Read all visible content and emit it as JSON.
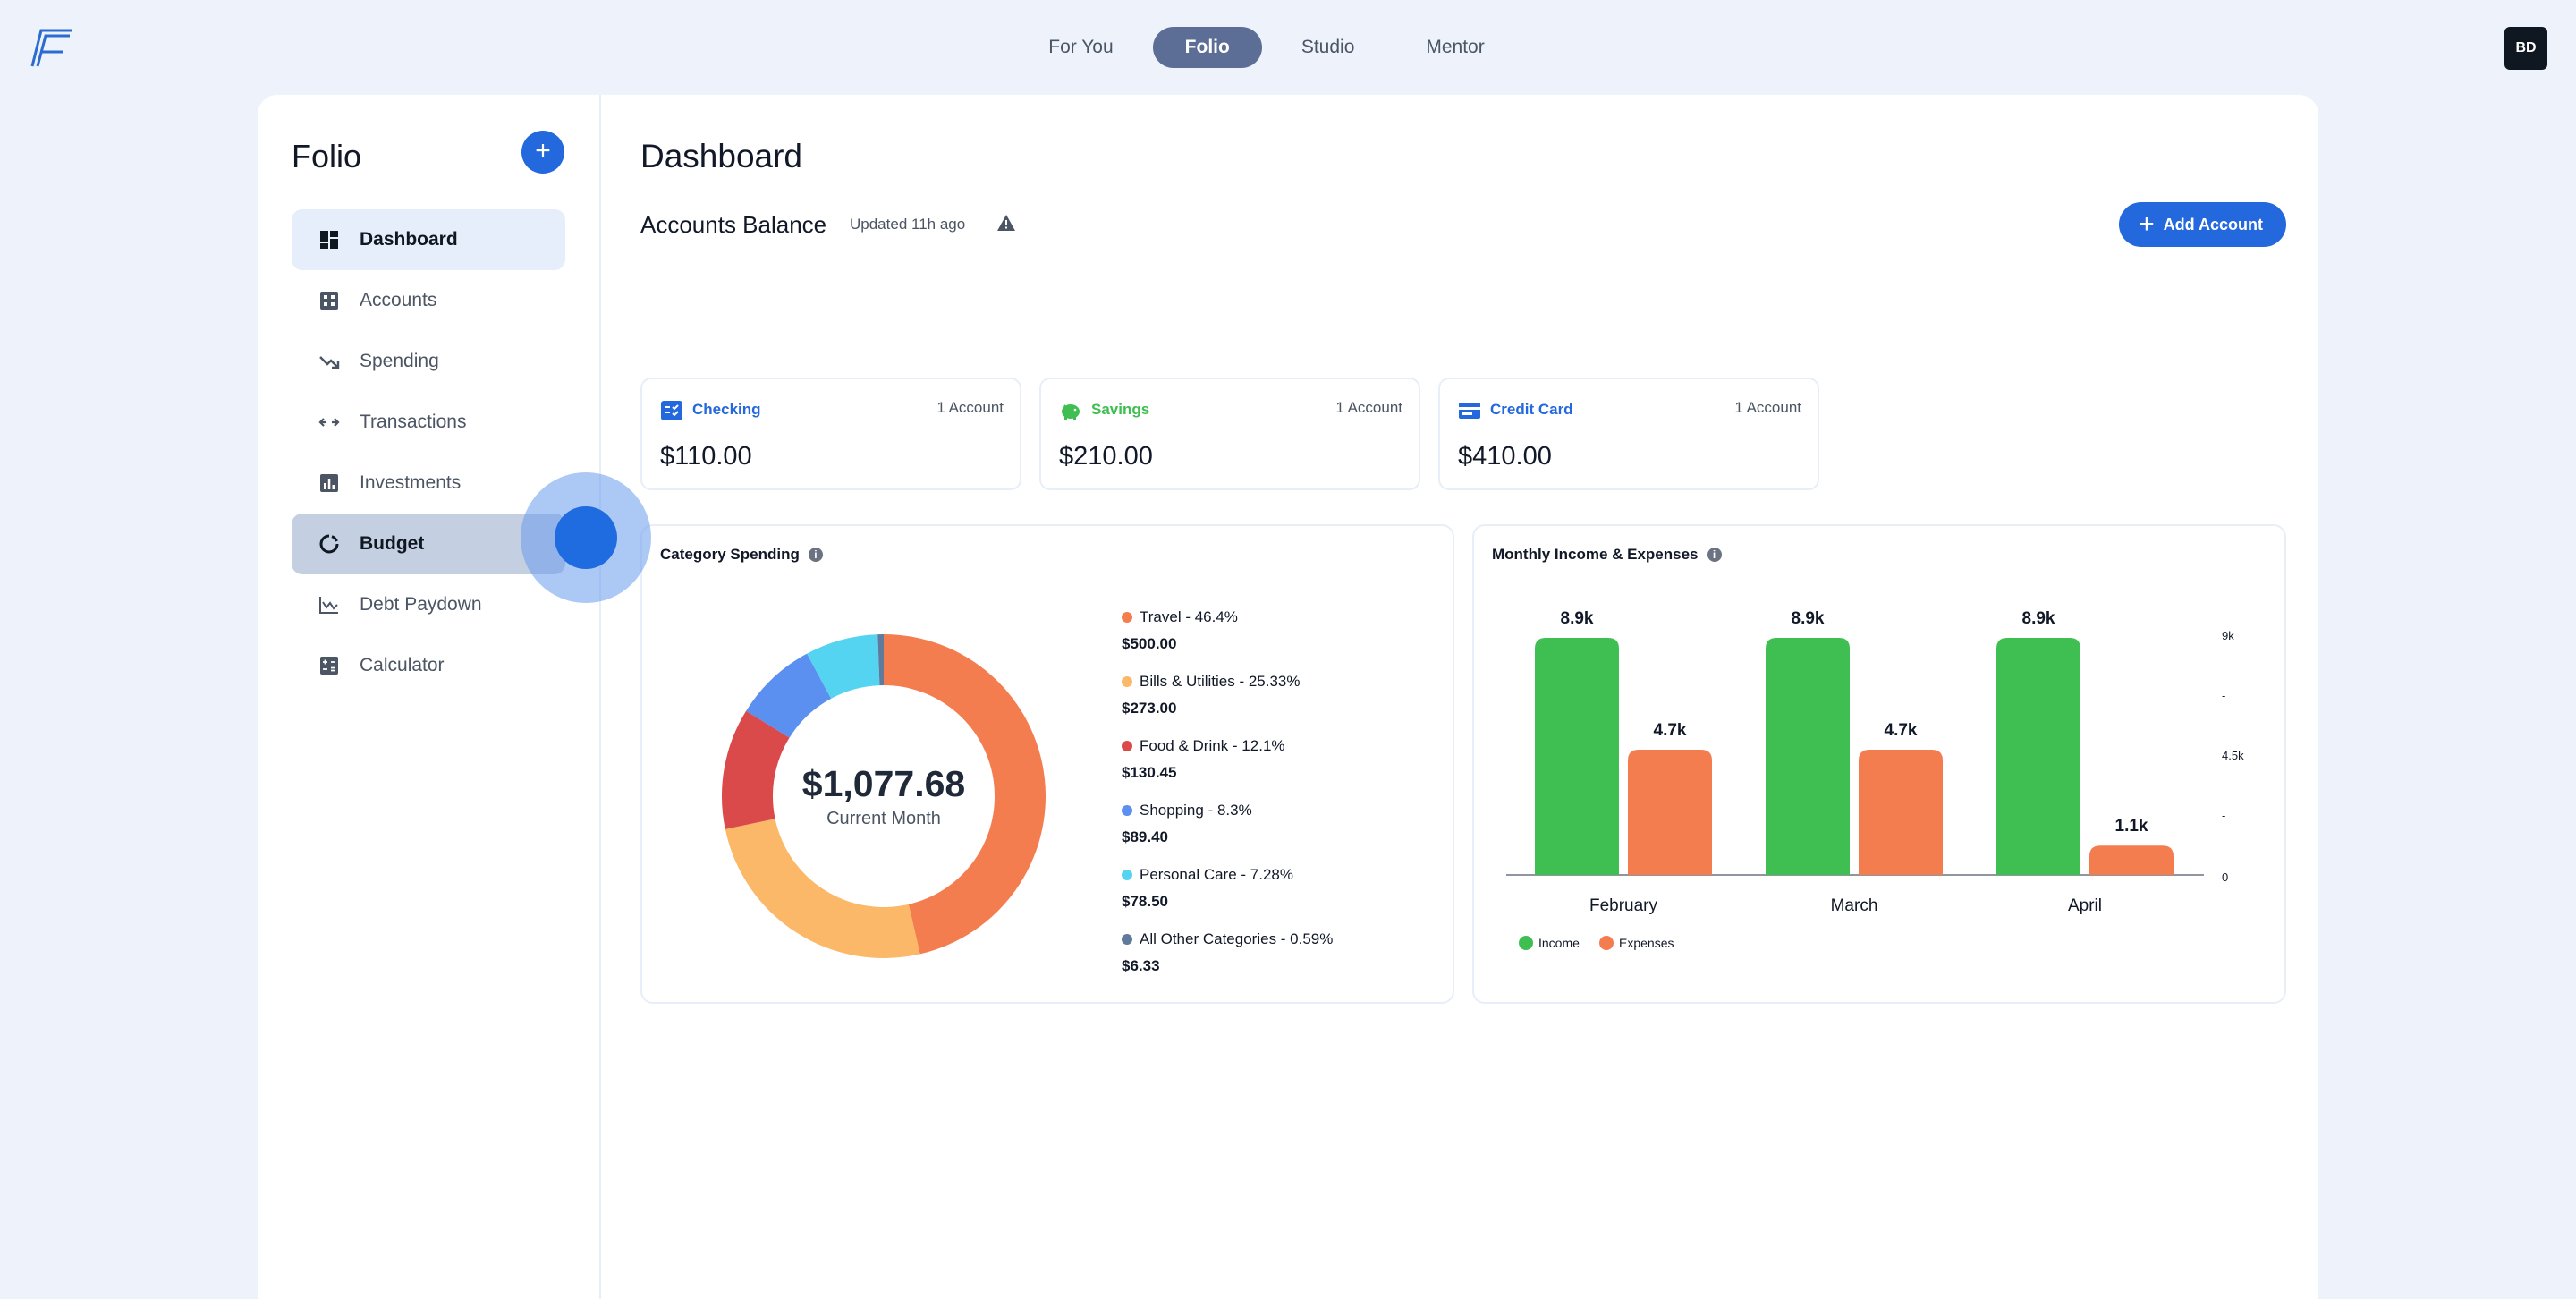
{
  "topnav": {
    "tabs": [
      {
        "label": "For You"
      },
      {
        "label": "Folio"
      },
      {
        "label": "Studio"
      },
      {
        "label": "Mentor"
      }
    ],
    "active": "Folio"
  },
  "user": {
    "initials": "BD"
  },
  "sidebar": {
    "title": "Folio",
    "add_label": "+",
    "items": [
      {
        "label": "Dashboard",
        "icon": "dashboard-icon"
      },
      {
        "label": "Accounts",
        "icon": "accounts-icon"
      },
      {
        "label": "Spending",
        "icon": "trending-down-icon"
      },
      {
        "label": "Transactions",
        "icon": "swap-arrows-icon"
      },
      {
        "label": "Investments",
        "icon": "bar-chart-icon"
      },
      {
        "label": "Budget",
        "icon": "donut-icon"
      },
      {
        "label": "Debt Paydown",
        "icon": "line-chart-icon"
      },
      {
        "label": "Calculator",
        "icon": "calculator-icon"
      }
    ]
  },
  "main": {
    "title": "Dashboard",
    "accounts_balance": {
      "title": "Accounts Balance",
      "updated": "Updated 11h ago"
    },
    "add_account_label": "Add Account",
    "accounts": [
      {
        "name": "Checking",
        "count": "1 Account",
        "balance": "$110.00",
        "color": "#2468dd"
      },
      {
        "name": "Savings",
        "count": "1 Account",
        "balance": "$210.00",
        "color": "#3fbf52"
      },
      {
        "name": "Credit Card",
        "count": "1 Account",
        "balance": "$410.00",
        "color": "#2468dd"
      }
    ]
  },
  "category_spending": {
    "title": "Category Spending",
    "total": "$1,077.68",
    "total_label": "Current Month",
    "categories": [
      {
        "name": "Travel",
        "pct_label": "46.4%",
        "amount": "$500.00",
        "color": "#f47d4f",
        "pct": 46.4
      },
      {
        "name": "Bills & Utilities",
        "pct_label": "25.33%",
        "amount": "$273.00",
        "color": "#fbb868",
        "pct": 25.33
      },
      {
        "name": "Food & Drink",
        "pct_label": "12.1%",
        "amount": "$130.45",
        "color": "#da4a4a",
        "pct": 12.1
      },
      {
        "name": "Shopping",
        "pct_label": "8.3%",
        "amount": "$89.40",
        "color": "#5b8ff0",
        "pct": 8.3
      },
      {
        "name": "Personal Care",
        "pct_label": "7.28%",
        "amount": "$78.50",
        "color": "#55d4f2",
        "pct": 7.28
      },
      {
        "name": "All Other Categories",
        "pct_label": "0.59%",
        "amount": "$6.33",
        "color": "#5f7a9c",
        "pct": 0.59
      }
    ]
  },
  "monthly": {
    "title": "Monthly Income & Expenses",
    "legend": [
      {
        "name": "Income",
        "color": "#3fbf52"
      },
      {
        "name": "Expenses",
        "color": "#f47d4f"
      }
    ]
  },
  "chart_data": {
    "type": "bar",
    "categories": [
      "February",
      "March",
      "April"
    ],
    "series": [
      {
        "name": "Income",
        "values": [
          8900,
          8900,
          8900
        ],
        "labels": [
          "8.9k",
          "8.9k",
          "8.9k"
        ],
        "color": "#3fbf52"
      },
      {
        "name": "Expenses",
        "values": [
          4700,
          4700,
          1100
        ],
        "labels": [
          "4.7k",
          "4.7k",
          "1.1k"
        ],
        "color": "#f47d4f"
      }
    ],
    "ylim": [
      0,
      9000
    ],
    "yticks": [
      "9k",
      "-",
      "4.5k",
      "-",
      "0"
    ],
    "legend_position": "bottom-left"
  }
}
